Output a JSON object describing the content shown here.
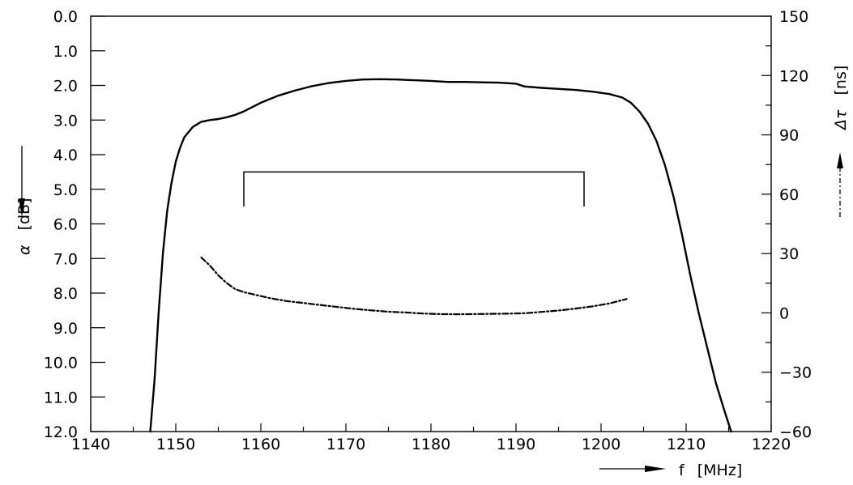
{
  "chart_data": {
    "type": "line",
    "x_axis": {
      "label_symbol": "f",
      "label_unit": "[MHz]",
      "range": [
        1140,
        1220
      ],
      "ticks": [
        "1140",
        "1150",
        "1160",
        "1170",
        "1180",
        "1190",
        "1200",
        "1210",
        "1220"
      ]
    },
    "y_left": {
      "label_symbol": "α",
      "label_unit": "[dB]",
      "range": [
        0,
        12
      ],
      "inverted": true,
      "ticks": [
        "0.0",
        "1.0",
        "2.0",
        "3.0",
        "4.0",
        "5.0",
        "6.0",
        "7.0",
        "8.0",
        "9.0",
        "10.0",
        "11.0",
        "12.0"
      ]
    },
    "y_right": {
      "label_symbol": "Δτ",
      "label_unit": "[ns]",
      "range": [
        -60,
        150
      ],
      "ticks": [
        "150",
        "120",
        "90",
        "60",
        "30",
        "0",
        "−30",
        "−60"
      ]
    },
    "series": [
      {
        "axis": "left",
        "style": "solid",
        "points": [
          [
            1147.0,
            12.0
          ],
          [
            1147.5,
            10.5
          ],
          [
            1148.0,
            8.5
          ],
          [
            1148.5,
            6.8
          ],
          [
            1149.0,
            5.6
          ],
          [
            1149.5,
            4.8
          ],
          [
            1150.0,
            4.2
          ],
          [
            1150.5,
            3.8
          ],
          [
            1151.0,
            3.5
          ],
          [
            1152.0,
            3.2
          ],
          [
            1153.0,
            3.05
          ],
          [
            1154.0,
            3.0
          ],
          [
            1155.0,
            2.97
          ],
          [
            1156.0,
            2.92
          ],
          [
            1157.0,
            2.85
          ],
          [
            1158.0,
            2.75
          ],
          [
            1160.0,
            2.5
          ],
          [
            1162.0,
            2.3
          ],
          [
            1164.0,
            2.15
          ],
          [
            1166.0,
            2.02
          ],
          [
            1168.0,
            1.93
          ],
          [
            1170.0,
            1.87
          ],
          [
            1172.0,
            1.83
          ],
          [
            1174.0,
            1.82
          ],
          [
            1176.0,
            1.83
          ],
          [
            1178.0,
            1.85
          ],
          [
            1180.0,
            1.87
          ],
          [
            1182.0,
            1.9
          ],
          [
            1184.0,
            1.9
          ],
          [
            1186.0,
            1.91
          ],
          [
            1188.0,
            1.92
          ],
          [
            1190.0,
            1.95
          ],
          [
            1191.0,
            2.03
          ],
          [
            1193.0,
            2.07
          ],
          [
            1195.0,
            2.1
          ],
          [
            1197.0,
            2.13
          ],
          [
            1199.0,
            2.18
          ],
          [
            1201.0,
            2.25
          ],
          [
            1202.5,
            2.35
          ],
          [
            1203.5,
            2.5
          ],
          [
            1204.5,
            2.75
          ],
          [
            1205.5,
            3.1
          ],
          [
            1206.5,
            3.6
          ],
          [
            1207.5,
            4.3
          ],
          [
            1208.5,
            5.2
          ],
          [
            1209.5,
            6.3
          ],
          [
            1210.5,
            7.5
          ],
          [
            1211.5,
            8.6
          ],
          [
            1212.5,
            9.6
          ],
          [
            1213.5,
            10.6
          ],
          [
            1214.5,
            11.4
          ],
          [
            1215.3,
            12.0
          ]
        ]
      },
      {
        "axis": "right",
        "style": "dashed",
        "points": [
          [
            1153.0,
            28
          ],
          [
            1154.0,
            24
          ],
          [
            1155.0,
            19
          ],
          [
            1156.0,
            15
          ],
          [
            1157.0,
            12
          ],
          [
            1158.0,
            10.5
          ],
          [
            1159.0,
            9.5
          ],
          [
            1161.0,
            7.5
          ],
          [
            1163.0,
            6
          ],
          [
            1165.0,
            5
          ],
          [
            1167.0,
            4
          ],
          [
            1169.0,
            3
          ],
          [
            1171.0,
            2
          ],
          [
            1173.0,
            1.3
          ],
          [
            1175.0,
            0.6
          ],
          [
            1177.0,
            0.2
          ],
          [
            1179.0,
            -0.3
          ],
          [
            1181.0,
            -0.6
          ],
          [
            1183.0,
            -0.7
          ],
          [
            1185.0,
            -0.6
          ],
          [
            1187.0,
            -0.5
          ],
          [
            1189.0,
            -0.4
          ],
          [
            1191.0,
            -0.2
          ],
          [
            1193.0,
            0.5
          ],
          [
            1195.0,
            1.2
          ],
          [
            1197.0,
            2.2
          ],
          [
            1199.0,
            3.3
          ],
          [
            1201.0,
            4.8
          ],
          [
            1203.0,
            7
          ]
        ]
      }
    ],
    "bracket": {
      "axis": "left",
      "x_start": 1158,
      "x_end": 1198,
      "top": 4.5,
      "bottom": 5.5
    },
    "grid": false
  }
}
